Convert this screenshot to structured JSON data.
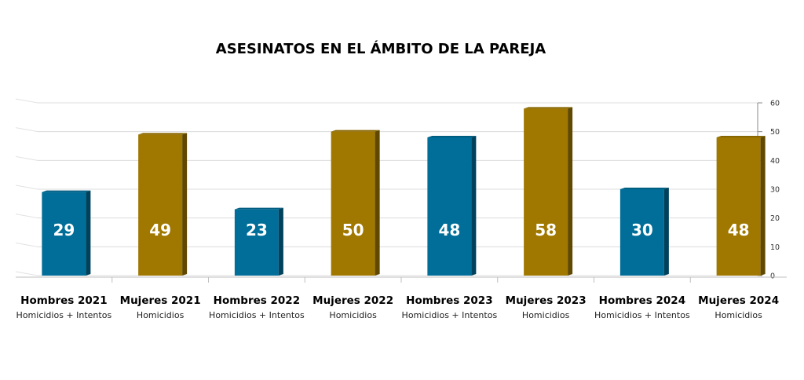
{
  "chart_data": {
    "type": "bar",
    "title": "ASESINATOS EN EL ÁMBITO DE LA PAREJA",
    "categories": [
      "Hombres 2021",
      "Mujeres 2021",
      "Hombres 2022",
      "Mujeres 2022",
      "Hombres 2023",
      "Mujeres 2023",
      "Hombres 2024",
      "Mujeres 2024"
    ],
    "subcategories": [
      "Homicidios + Intentos",
      "Homicidios",
      "Homicidios + Intentos",
      "Homicidios",
      "Homicidios + Intentos",
      "Homicidios",
      "Homicidios + Intentos",
      "Homicidios"
    ],
    "values": [
      29,
      49,
      23,
      50,
      48,
      58,
      30,
      48
    ],
    "y_ticks": [
      0,
      10,
      20,
      30,
      40,
      50,
      60
    ],
    "ylim": [
      0,
      60
    ],
    "y_axis_position": "right",
    "grid": true,
    "data_labels": true,
    "colors": {
      "hombres": "#006E98",
      "mujeres": "#A07800",
      "accent_blue": "#29A8DF",
      "accent_gold": "#FFC000"
    }
  }
}
